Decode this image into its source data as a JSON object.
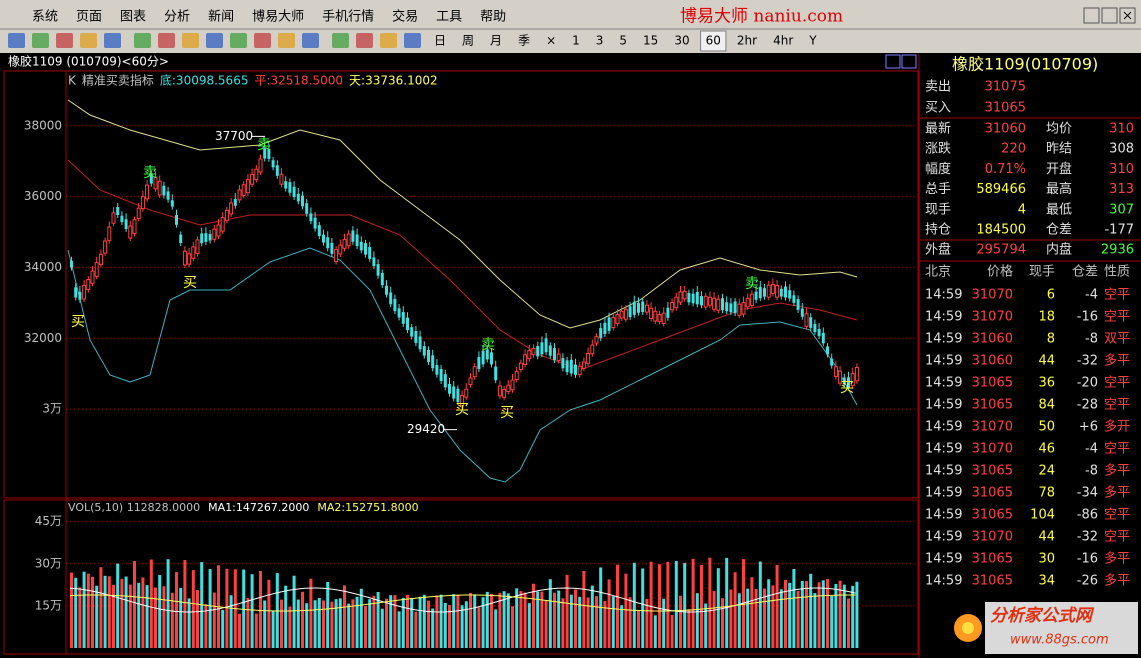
{
  "menu": [
    "系统",
    "页面",
    "图表",
    "分析",
    "新闻",
    "博易大师",
    "手机行情",
    "交易",
    "工具",
    "帮助"
  ],
  "brand": "博易大师 naniu.com",
  "periods": [
    "日",
    "周",
    "月",
    "季",
    "×",
    "1",
    "3",
    "5",
    "15",
    "30",
    "60",
    "2hr",
    "4hr",
    "Y"
  ],
  "selected_period_index": 10,
  "chart": {
    "title": "橡胶1109 (010709)<60分>",
    "indicator": [
      {
        "text": "K",
        "color": "#c0c0c0"
      },
      {
        "text": "精准买卖指标",
        "color": "#c0c0c0"
      },
      {
        "text": "底:30098.5665",
        "color": "#40e0e0"
      },
      {
        "text": "平:32518.5000",
        "color": "#ff4040"
      },
      {
        "text": "天:33736.1002",
        "color": "#ffff60"
      }
    ],
    "ylim": [
      27518,
      39518
    ],
    "yticks": [
      38000,
      36000,
      34000,
      32000,
      {
        "value": 30000,
        "label": "3万"
      }
    ],
    "annotations": [
      37700,
      29420
    ],
    "signals": [
      "买",
      "卖",
      "买",
      "卖",
      "买",
      "卖",
      "买",
      "卖",
      "买"
    ]
  },
  "volume": {
    "indicator": [
      {
        "text": "VOL(5,10) 112828.0000",
        "color": "#c0c0c0"
      },
      {
        "text": "MA1:147267.2000",
        "color": "#ffffff"
      },
      {
        "text": "MA2:152751.8000",
        "color": "#ffff60"
      }
    ],
    "ylim": [
      0,
      520000
    ],
    "yticks": [
      {
        "value": 450000,
        "label": "45万"
      },
      {
        "value": 300000,
        "label": "30万"
      },
      {
        "value": 150000,
        "label": "15万"
      }
    ]
  },
  "quote": {
    "title": "橡胶1109(010709)",
    "book": [
      [
        "卖出",
        "31075"
      ],
      [
        "买入",
        "31065"
      ]
    ],
    "rows": [
      [
        "最新",
        "31060",
        "均价",
        "310"
      ],
      [
        "涨跌",
        "220",
        "昨结",
        "308"
      ],
      [
        "幅度",
        "0.71%",
        "开盘",
        "310"
      ],
      [
        "总手",
        "589466",
        "最高",
        "313"
      ],
      [
        "现手",
        "4",
        "最低",
        "307"
      ],
      [
        "持仓",
        "184500",
        "仓差",
        "-177"
      ],
      [
        "外盘",
        "295794",
        "内盘",
        "2936"
      ]
    ]
  },
  "trades": {
    "header": [
      "北京",
      "价格",
      "现手",
      "仓差",
      "性质"
    ],
    "rows": [
      [
        "14:59",
        "31070",
        "6",
        "-4",
        "空平"
      ],
      [
        "14:59",
        "31070",
        "18",
        "-16",
        "空平"
      ],
      [
        "14:59",
        "31060",
        "8",
        "-8",
        "双平"
      ],
      [
        "14:59",
        "31060",
        "44",
        "-32",
        "多平"
      ],
      [
        "14:59",
        "31065",
        "36",
        "-20",
        "空平"
      ],
      [
        "14:59",
        "31065",
        "84",
        "-28",
        "空平"
      ],
      [
        "14:59",
        "31070",
        "50",
        "+6",
        "多开"
      ],
      [
        "14:59",
        "31070",
        "46",
        "-4",
        "空平"
      ],
      [
        "14:59",
        "31065",
        "24",
        "-8",
        "多平"
      ],
      [
        "14:59",
        "31065",
        "78",
        "-34",
        "多平"
      ],
      [
        "14:59",
        "31065",
        "104",
        "-86",
        "空平"
      ],
      [
        "14:59",
        "31070",
        "44",
        "-32",
        "空平"
      ],
      [
        "14:59",
        "31065",
        "30",
        "-16",
        "多平"
      ],
      [
        "14:59",
        "31065",
        "34",
        "-26",
        "多平"
      ]
    ]
  },
  "watermark": {
    "name": "分析家公式网",
    "url": "www.88gs.com"
  }
}
